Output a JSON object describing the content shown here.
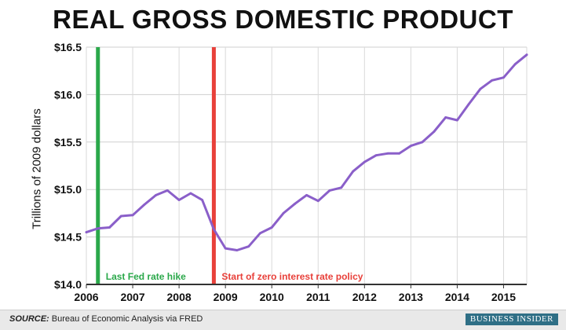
{
  "chart_data": {
    "type": "line",
    "title": "REAL GROSS DOMESTIC PRODUCT",
    "ylabel": "Trillions of 2009 dollars",
    "ylim": [
      14.0,
      16.5
    ],
    "xlim": [
      2006.0,
      2015.5
    ],
    "yticks": [
      "$14.0",
      "$14.5",
      "$15.0",
      "$15.5",
      "$16.0",
      "$16.5"
    ],
    "ytick_values": [
      14.0,
      14.5,
      15.0,
      15.5,
      16.0,
      16.5
    ],
    "xticks": [
      "2006",
      "2007",
      "2008",
      "2009",
      "2010",
      "2011",
      "2012",
      "2013",
      "2014",
      "2015"
    ],
    "xtick_values": [
      2006,
      2007,
      2008,
      2009,
      2010,
      2011,
      2012,
      2013,
      2014,
      2015
    ],
    "grid": true,
    "line_color": "#8a5fc9",
    "series": [
      {
        "x": [
          2006.0,
          2006.25,
          2006.5,
          2006.75,
          2007.0,
          2007.25,
          2007.5,
          2007.75,
          2008.0,
          2008.25,
          2008.5,
          2008.75,
          2009.0,
          2009.25,
          2009.5,
          2009.75,
          2010.0,
          2010.25,
          2010.5,
          2010.75,
          2011.0,
          2011.25,
          2011.5,
          2011.75,
          2012.0,
          2012.25,
          2012.5,
          2012.75,
          2013.0,
          2013.25,
          2013.5,
          2013.75,
          2014.0,
          2014.25,
          2014.5,
          2014.75,
          2015.0,
          2015.25,
          2015.5
        ],
        "values": [
          14.55,
          14.59,
          14.6,
          14.72,
          14.73,
          14.84,
          14.94,
          14.99,
          14.89,
          14.96,
          14.89,
          14.58,
          14.38,
          14.36,
          14.4,
          14.54,
          14.6,
          14.75,
          14.85,
          14.94,
          14.88,
          14.99,
          15.02,
          15.19,
          15.29,
          15.36,
          15.38,
          15.38,
          15.46,
          15.5,
          15.61,
          15.76,
          15.73,
          15.9,
          16.06,
          16.15,
          16.18,
          16.32,
          16.42
        ]
      }
    ],
    "annotations": [
      {
        "label": "Last Fed rate hike",
        "x": 2006.25,
        "color": "#2aa84a"
      },
      {
        "label": "Start of zero interest rate policy",
        "x": 2008.75,
        "color": "#e8403a"
      }
    ]
  },
  "footer": {
    "source_prefix": "SOURCE:",
    "source_text": " Bureau of Economic Analysis via FRED",
    "brand": "BUSINESS INSIDER"
  }
}
